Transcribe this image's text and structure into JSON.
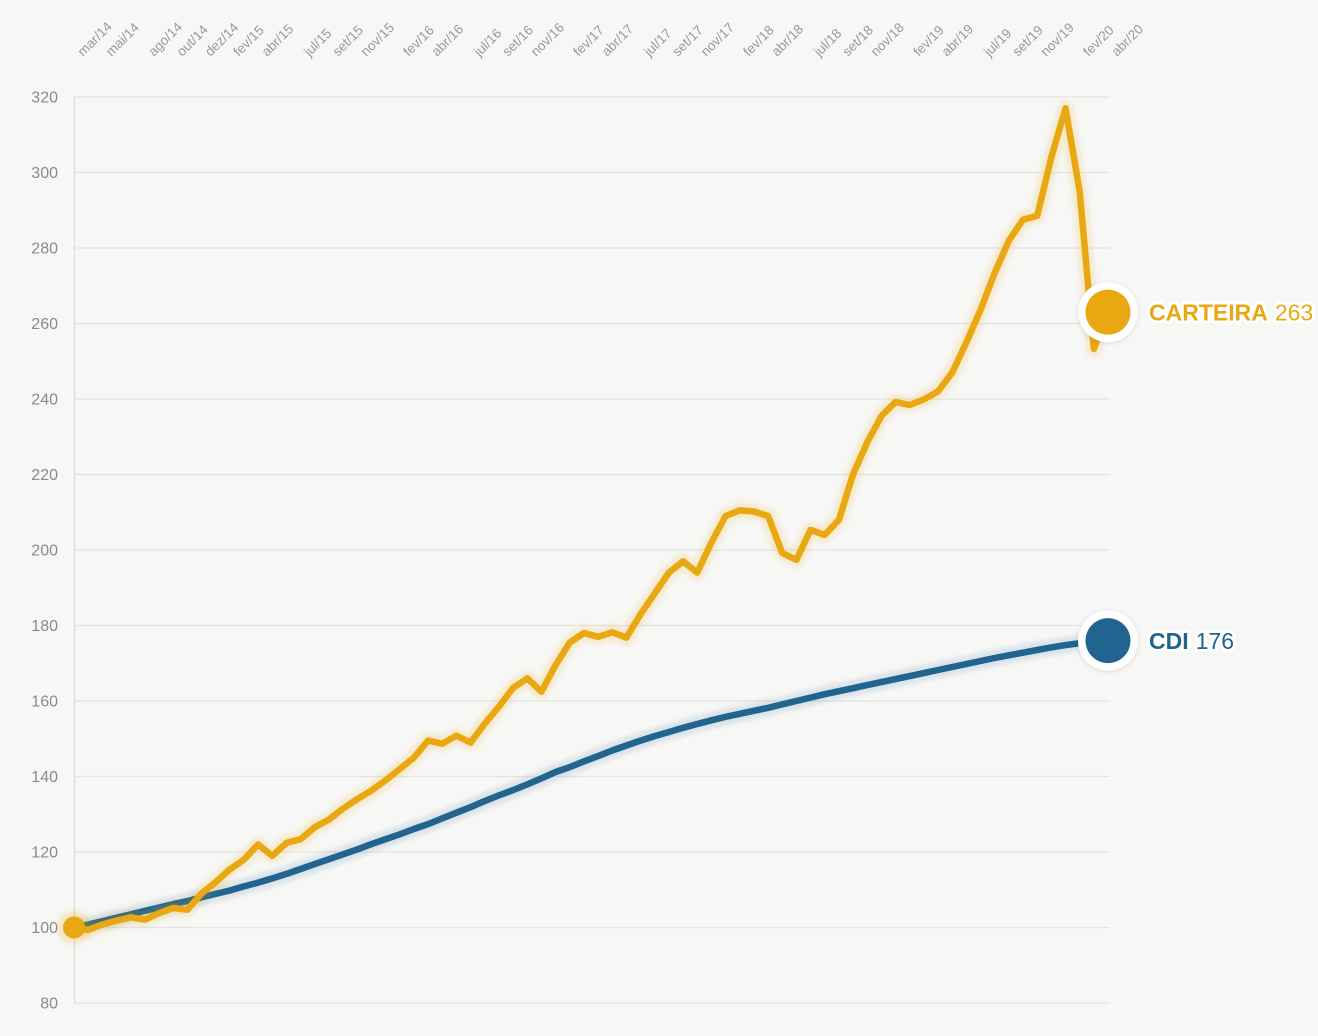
{
  "chart_data": {
    "type": "line",
    "title": "",
    "background_color": "#F7F7F6",
    "grid_color": "#E4E4E2",
    "axis_color": "#DEDEDC",
    "y_tick_text_color": "#8A8A8A",
    "x_tick_text_color": "#999999",
    "grid": "horizontal-only",
    "legend_position": "line-end-labels-right",
    "x_axis": {
      "position": "top",
      "label_rotation_deg": -45,
      "unit": "month",
      "first_month": "mar/14",
      "last_month": "abr/20",
      "n_points": 74,
      "tick_labels": [
        {
          "label": "mar/14",
          "month_index": 0
        },
        {
          "label": "mai/14",
          "month_index": 2
        },
        {
          "label": "ago/14",
          "month_index": 5
        },
        {
          "label": "out/14",
          "month_index": 7
        },
        {
          "label": "dez/14",
          "month_index": 9
        },
        {
          "label": "fev/15",
          "month_index": 11
        },
        {
          "label": "abr/15",
          "month_index": 13
        },
        {
          "label": "jul/15",
          "month_index": 16
        },
        {
          "label": "set/15",
          "month_index": 18
        },
        {
          "label": "nov/15",
          "month_index": 20
        },
        {
          "label": "fev/16",
          "month_index": 23
        },
        {
          "label": "abr/16",
          "month_index": 25
        },
        {
          "label": "jul/16",
          "month_index": 28
        },
        {
          "label": "set/16",
          "month_index": 30
        },
        {
          "label": "nov/16",
          "month_index": 32
        },
        {
          "label": "fev/17",
          "month_index": 35
        },
        {
          "label": "abr/17",
          "month_index": 37
        },
        {
          "label": "jul/17",
          "month_index": 40
        },
        {
          "label": "set/17",
          "month_index": 42
        },
        {
          "label": "nov/17",
          "month_index": 44
        },
        {
          "label": "fev/18",
          "month_index": 47
        },
        {
          "label": "abr/18",
          "month_index": 49
        },
        {
          "label": "jul/18",
          "month_index": 52
        },
        {
          "label": "set/18",
          "month_index": 54
        },
        {
          "label": "nov/18",
          "month_index": 56
        },
        {
          "label": "fev/19",
          "month_index": 59
        },
        {
          "label": "abr/19",
          "month_index": 61
        },
        {
          "label": "jul/19",
          "month_index": 64
        },
        {
          "label": "set/19",
          "month_index": 66
        },
        {
          "label": "nov/19",
          "month_index": 68
        },
        {
          "label": "fev/20",
          "month_index": 71
        },
        {
          "label": "abr/20",
          "month_index": 73
        }
      ]
    },
    "y_axis": {
      "min": 80,
      "max": 320,
      "ticks": [
        320,
        300,
        280,
        260,
        240,
        220,
        200,
        180,
        160,
        140,
        120,
        100,
        80
      ]
    },
    "series": [
      {
        "name": "CDI",
        "color": "#20648F",
        "halo_opacity": 0.14,
        "start_dot": false,
        "end_label": {
          "name": "CDI",
          "value": "176"
        },
        "values": [
          100,
          100.8,
          101.7,
          102.6,
          103.5,
          104.4,
          105.3,
          106.2,
          107.0,
          108.0,
          108.9,
          109.8,
          110.9,
          111.9,
          113.0,
          114.2,
          115.5,
          116.8,
          118.1,
          119.4,
          120.7,
          122.1,
          123.4,
          124.7,
          126.1,
          127.4,
          128.9,
          130.4,
          131.9,
          133.5,
          135.0,
          136.4,
          137.9,
          139.5,
          141.2,
          142.5,
          144.0,
          145.4,
          146.9,
          148.2,
          149.5,
          150.7,
          151.8,
          152.9,
          153.9,
          154.9,
          155.8,
          156.6,
          157.4,
          158.2,
          159.1,
          160.0,
          160.9,
          161.8,
          162.6,
          163.4,
          164.2,
          165.0,
          165.8,
          166.6,
          167.4,
          168.2,
          169.0,
          169.8,
          170.6,
          171.4,
          172.1,
          172.8,
          173.5,
          174.2,
          174.8,
          175.3,
          175.7,
          176.0
        ]
      },
      {
        "name": "CARTEIRA",
        "color": "#E9A712",
        "halo_opacity": 0.16,
        "start_dot": true,
        "end_label": {
          "name": "CARTEIRA",
          "value": "263"
        },
        "values": [
          100,
          99.4,
          100.8,
          101.8,
          102.7,
          102.1,
          103.8,
          105.2,
          104.7,
          109.0,
          112.0,
          115.4,
          118.0,
          122.0,
          119.0,
          122.4,
          123.4,
          126.6,
          128.6,
          131.5,
          134.0,
          136.3,
          139.0,
          142.0,
          145.0,
          149.5,
          148.7,
          150.8,
          149.0,
          154.0,
          158.5,
          163.5,
          166.0,
          162.5,
          169.5,
          175.5,
          178.0,
          177.0,
          178.2,
          176.8,
          183.0,
          188.5,
          194.0,
          197.0,
          194.0,
          202.0,
          209.0,
          210.5,
          210.2,
          209.0,
          199.2,
          197.4,
          205.3,
          204.0,
          208.0,
          220.0,
          228.5,
          235.5,
          239.2,
          238.4,
          239.9,
          242.0,
          247.0,
          255.0,
          263.6,
          273.4,
          281.9,
          287.5,
          288.5,
          304.0,
          317.0,
          295.0,
          253.3,
          263.0
        ]
      }
    ]
  }
}
